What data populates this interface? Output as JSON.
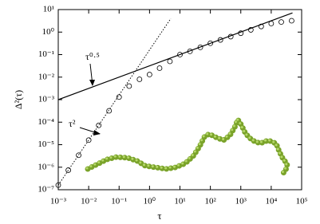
{
  "chart_data": {
    "type": "line",
    "x_label": "τ",
    "y_label": "Δ²(τ)",
    "log_x": true,
    "log_y": true,
    "xlim": [
      0.001,
      100000
    ],
    "ylim": [
      1e-07,
      10
    ],
    "xticks": [
      {
        "value": 0.001,
        "label": "10⁻³"
      },
      {
        "value": 0.01,
        "label": "10⁻²"
      },
      {
        "value": 0.1,
        "label": "10⁻¹"
      },
      {
        "value": 1,
        "label": "10⁰"
      },
      {
        "value": 10,
        "label": "10¹"
      },
      {
        "value": 100,
        "label": "10²"
      },
      {
        "value": 1000,
        "label": "10³"
      },
      {
        "value": 10000,
        "label": "10⁴"
      },
      {
        "value": 100000,
        "label": "10⁵"
      }
    ],
    "yticks": [
      {
        "value": 1e-07,
        "label": "10⁻⁷"
      },
      {
        "value": 1e-06,
        "label": "10⁻⁶"
      },
      {
        "value": 1e-05,
        "label": "10⁻⁵"
      },
      {
        "value": 0.0001,
        "label": "10⁻⁴"
      },
      {
        "value": 0.001,
        "label": "10⁻³"
      },
      {
        "value": 0.01,
        "label": "10⁻²"
      },
      {
        "value": 0.1,
        "label": "10⁻¹"
      },
      {
        "value": 1,
        "label": "10⁰"
      },
      {
        "value": 10,
        "label": "10¹"
      }
    ],
    "series": [
      {
        "style": "circles",
        "color": "#000000",
        "x": [
          0.001,
          0.00214,
          0.00468,
          0.01,
          0.0214,
          0.0468,
          0.1,
          0.214,
          0.468,
          1,
          2.14,
          4.68,
          10,
          21.4,
          46.8,
          100,
          214,
          468,
          1000,
          2140,
          4680,
          10000,
          21400,
          46800
        ],
        "values": [
          1.6e-07,
          7.4e-07,
          3.4e-06,
          1.6e-05,
          7.2e-05,
          0.00032,
          0.0013,
          0.004,
          0.008,
          0.013,
          0.025,
          0.05,
          0.1,
          0.14,
          0.21,
          0.32,
          0.45,
          0.63,
          0.89,
          1.26,
          1.78,
          2.4,
          2.8,
          3.2
        ]
      },
      {
        "style": "solid",
        "color": "#000000",
        "x": [
          0.001,
          50000
        ],
        "values": [
          0.001,
          7.1
        ]
      },
      {
        "style": "dotted",
        "color": "#000000",
        "x": [
          0.001,
          5
        ],
        "values": [
          1.6e-07,
          4
        ]
      }
    ],
    "annotations": [
      {
        "text": "τ⁰·⁵"
      },
      {
        "text": "τ²"
      }
    ]
  }
}
